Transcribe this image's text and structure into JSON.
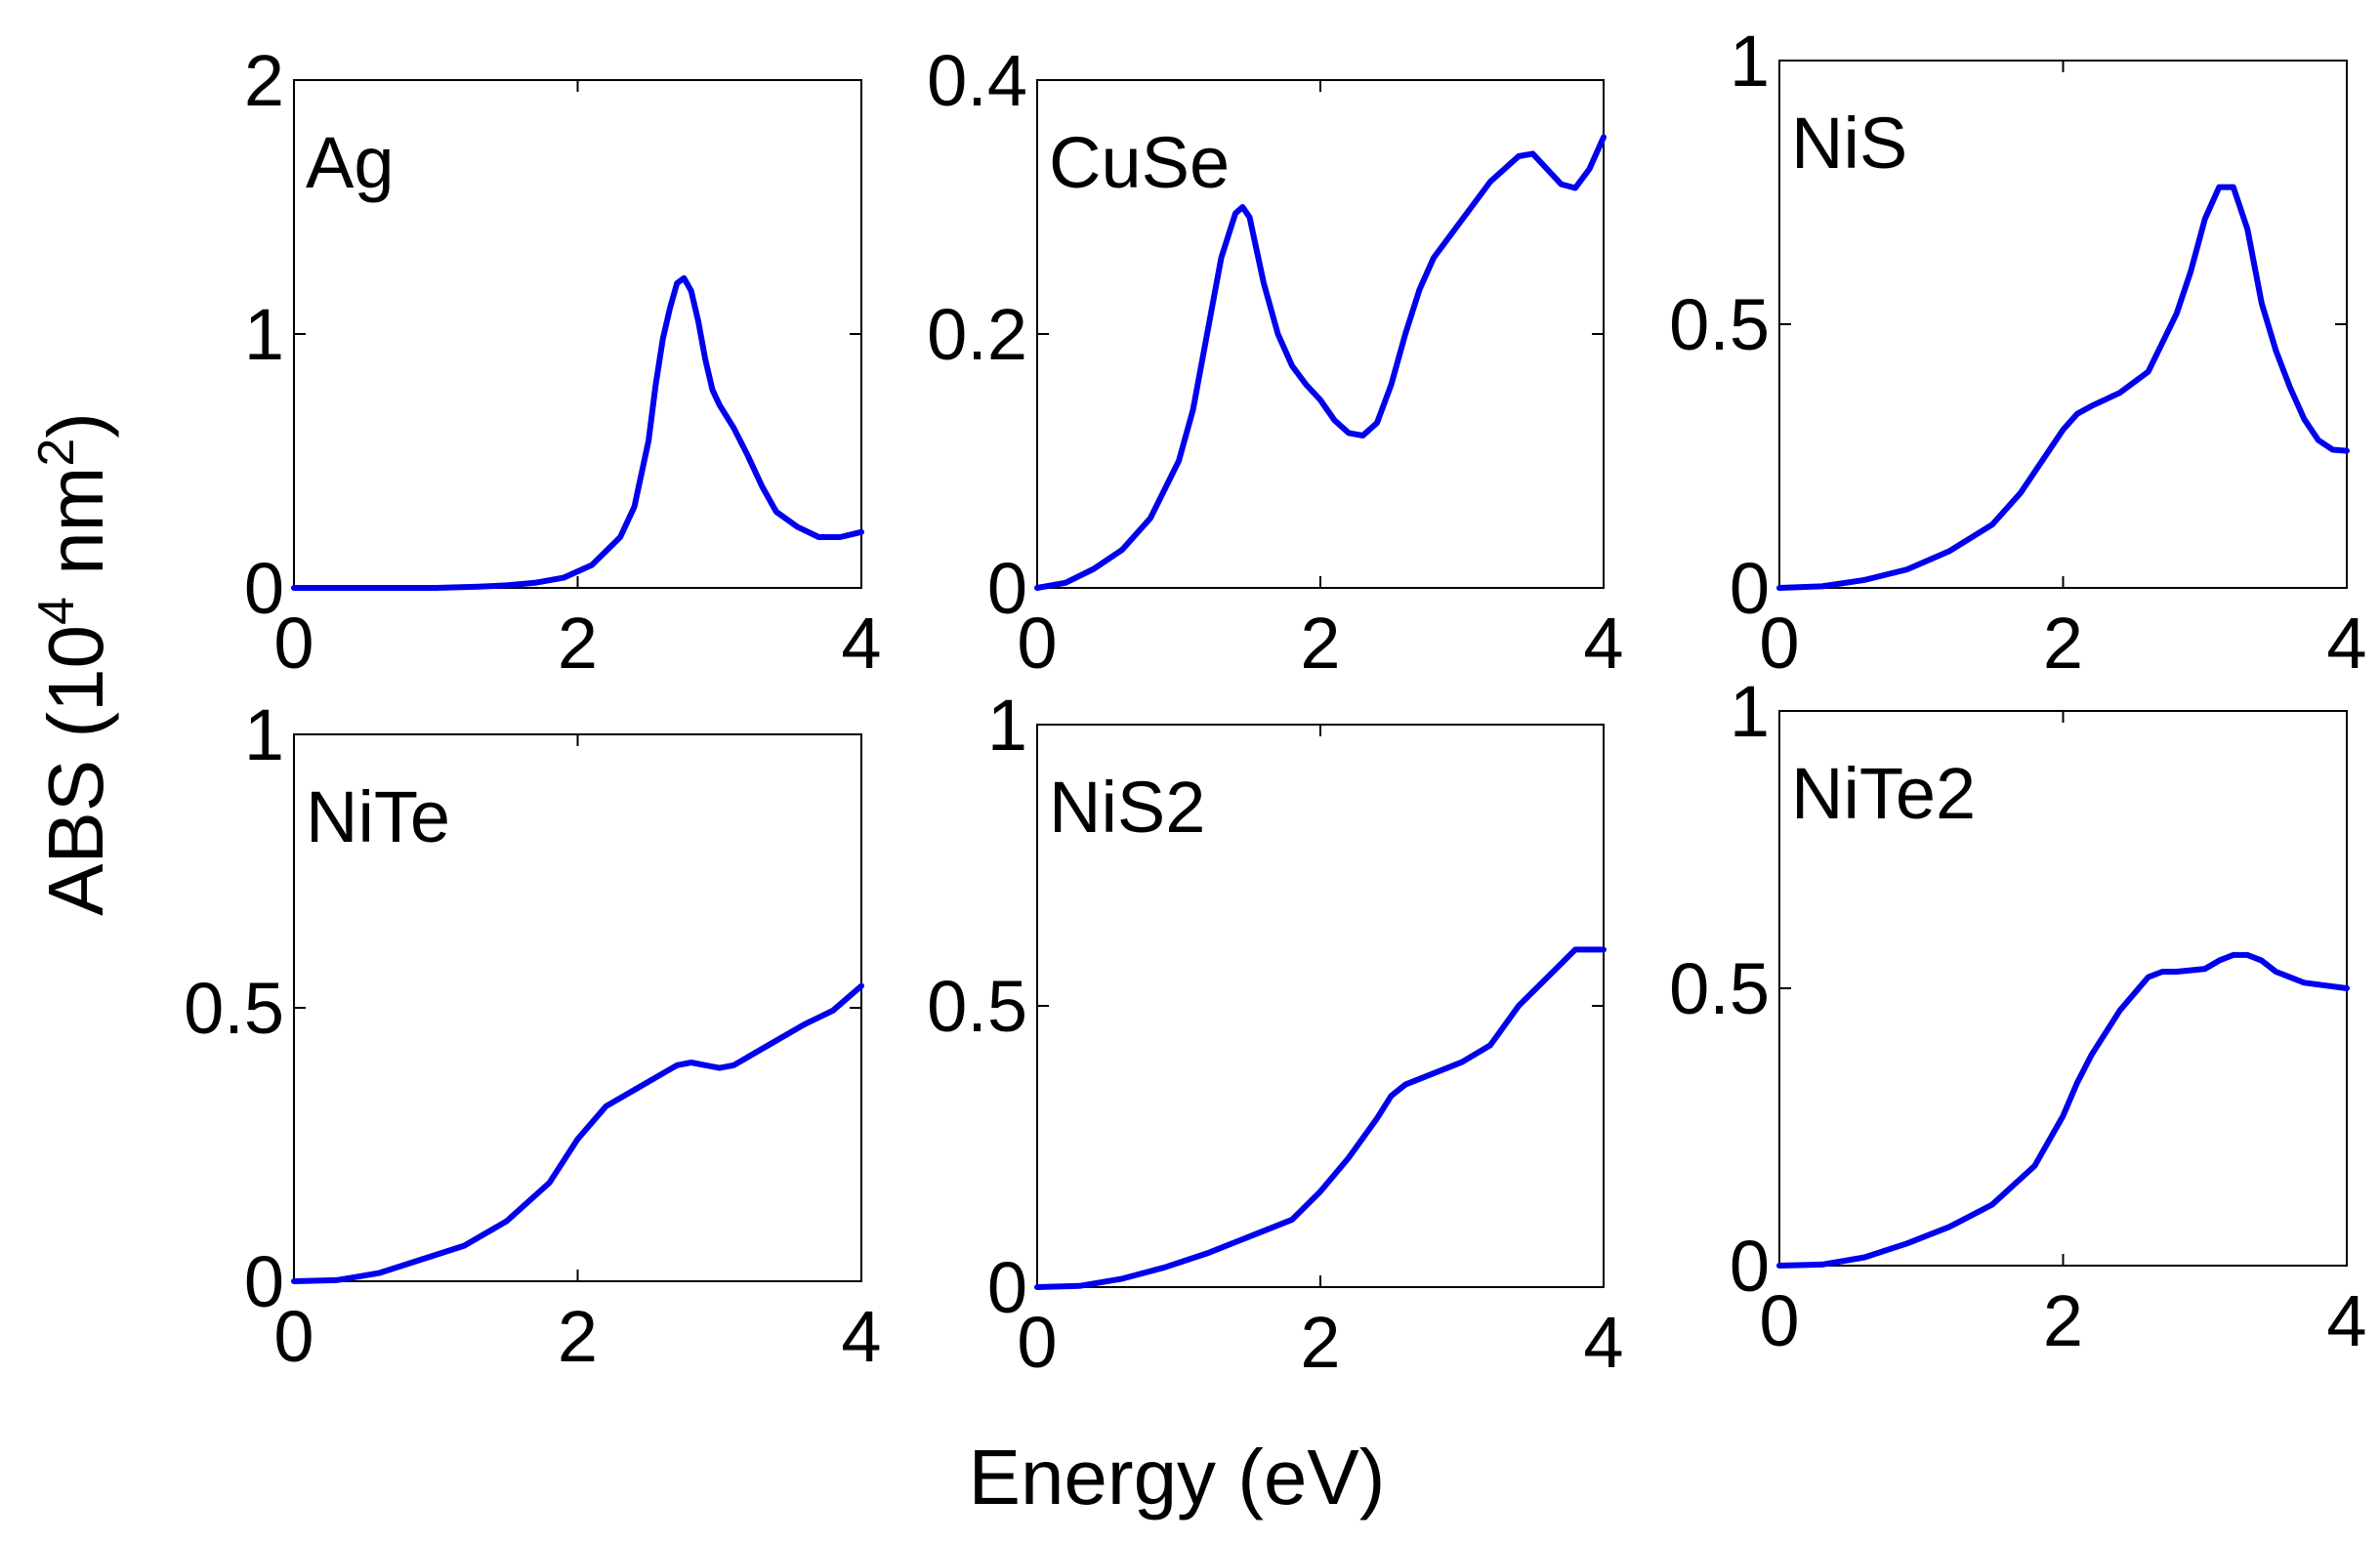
{
  "figure": {
    "ylabel_main": "ABS (10",
    "ylabel_exp1": "4",
    "ylabel_mid": " nm",
    "ylabel_exp2": "2",
    "ylabel_close": ")",
    "xlabel": "Energy (eV)",
    "line_color": "#0000ee"
  },
  "chart_data": [
    {
      "type": "line",
      "title": "Ag",
      "xlim": [
        0,
        4
      ],
      "ylim": [
        0,
        2
      ],
      "xticks": [
        0,
        2,
        4
      ],
      "xtick_labels": [
        "0",
        "2",
        "4"
      ],
      "yticks": [
        0,
        1,
        2
      ],
      "ytick_labels": [
        "0",
        "1",
        "2"
      ],
      "x": [
        0,
        0.5,
        1.0,
        1.3,
        1.5,
        1.7,
        1.9,
        2.1,
        2.3,
        2.4,
        2.5,
        2.55,
        2.6,
        2.65,
        2.7,
        2.75,
        2.8,
        2.85,
        2.9,
        2.95,
        3.0,
        3.1,
        3.2,
        3.3,
        3.4,
        3.55,
        3.7,
        3.85,
        4.0
      ],
      "y": [
        0,
        0,
        0,
        0.005,
        0.01,
        0.02,
        0.04,
        0.09,
        0.2,
        0.32,
        0.58,
        0.8,
        0.98,
        1.1,
        1.2,
        1.22,
        1.17,
        1.05,
        0.9,
        0.78,
        0.72,
        0.63,
        0.52,
        0.4,
        0.3,
        0.24,
        0.2,
        0.2,
        0.22
      ]
    },
    {
      "type": "line",
      "title": "CuSe",
      "xlim": [
        0,
        4
      ],
      "ylim": [
        0,
        0.4
      ],
      "xticks": [
        0,
        2,
        4
      ],
      "xtick_labels": [
        "0",
        "2",
        "4"
      ],
      "yticks": [
        0,
        0.2,
        0.4
      ],
      "ytick_labels": [
        "0",
        "0.2",
        "0.4"
      ],
      "x": [
        0,
        0.2,
        0.4,
        0.6,
        0.8,
        1.0,
        1.1,
        1.2,
        1.3,
        1.4,
        1.45,
        1.5,
        1.6,
        1.7,
        1.8,
        1.9,
        2.0,
        2.1,
        2.2,
        2.3,
        2.4,
        2.5,
        2.6,
        2.7,
        2.8,
        3.0,
        3.2,
        3.4,
        3.5,
        3.6,
        3.7,
        3.8,
        3.9,
        4.0
      ],
      "y": [
        0,
        0.004,
        0.015,
        0.03,
        0.055,
        0.1,
        0.14,
        0.2,
        0.26,
        0.295,
        0.3,
        0.292,
        0.24,
        0.2,
        0.175,
        0.16,
        0.148,
        0.132,
        0.122,
        0.12,
        0.13,
        0.16,
        0.2,
        0.235,
        0.26,
        0.29,
        0.32,
        0.34,
        0.342,
        0.33,
        0.318,
        0.315,
        0.33,
        0.355
      ]
    },
    {
      "type": "line",
      "title": "NiS",
      "xlim": [
        0,
        4
      ],
      "ylim": [
        0,
        1
      ],
      "xticks": [
        0,
        2,
        4
      ],
      "xtick_labels": [
        "0",
        "2",
        "4"
      ],
      "yticks": [
        0,
        0.5,
        1
      ],
      "ytick_labels": [
        "0",
        "0.5",
        "1"
      ],
      "x": [
        0,
        0.3,
        0.6,
        0.9,
        1.2,
        1.5,
        1.7,
        1.9,
        2.0,
        2.1,
        2.2,
        2.4,
        2.6,
        2.8,
        2.9,
        3.0,
        3.1,
        3.2,
        3.3,
        3.4,
        3.5,
        3.6,
        3.7,
        3.8,
        3.9,
        4.0
      ],
      "y": [
        0,
        0.003,
        0.015,
        0.035,
        0.07,
        0.12,
        0.18,
        0.26,
        0.3,
        0.33,
        0.345,
        0.37,
        0.41,
        0.52,
        0.6,
        0.7,
        0.76,
        0.76,
        0.68,
        0.54,
        0.45,
        0.38,
        0.32,
        0.28,
        0.262,
        0.26
      ]
    },
    {
      "type": "line",
      "title": "NiTe",
      "xlim": [
        0,
        4
      ],
      "ylim": [
        0,
        1
      ],
      "xticks": [
        0,
        2,
        4
      ],
      "xtick_labels": [
        "0",
        "2",
        "4"
      ],
      "yticks": [
        0,
        0.5,
        1
      ],
      "ytick_labels": [
        "0",
        "0.5",
        "1"
      ],
      "x": [
        0,
        0.3,
        0.6,
        0.9,
        1.2,
        1.5,
        1.8,
        2.0,
        2.2,
        2.4,
        2.6,
        2.7,
        2.8,
        2.9,
        3.0,
        3.1,
        3.2,
        3.4,
        3.6,
        3.8,
        4.0
      ],
      "y": [
        0,
        0.002,
        0.015,
        0.04,
        0.065,
        0.11,
        0.18,
        0.26,
        0.32,
        0.35,
        0.38,
        0.395,
        0.4,
        0.395,
        0.39,
        0.395,
        0.41,
        0.44,
        0.47,
        0.495,
        0.54
      ]
    },
    {
      "type": "line",
      "title": "NiS2",
      "xlim": [
        0,
        4
      ],
      "ylim": [
        0,
        1
      ],
      "xticks": [
        0,
        2,
        4
      ],
      "xtick_labels": [
        "0",
        "2",
        "4"
      ],
      "yticks": [
        0,
        0.5,
        1
      ],
      "ytick_labels": [
        "0",
        "0.5",
        "1"
      ],
      "x": [
        0,
        0.3,
        0.6,
        0.9,
        1.2,
        1.5,
        1.8,
        2.0,
        2.2,
        2.4,
        2.5,
        2.6,
        2.8,
        3.0,
        3.2,
        3.4,
        3.6,
        3.8,
        3.9,
        4.0
      ],
      "y": [
        0,
        0.002,
        0.015,
        0.035,
        0.06,
        0.09,
        0.12,
        0.17,
        0.23,
        0.3,
        0.34,
        0.36,
        0.38,
        0.4,
        0.43,
        0.5,
        0.55,
        0.6,
        0.6,
        0.6
      ]
    },
    {
      "type": "line",
      "title": "NiTe2",
      "xlim": [
        0,
        4
      ],
      "ylim": [
        0,
        1
      ],
      "xticks": [
        0,
        2,
        4
      ],
      "xtick_labels": [
        "0",
        "2",
        "4"
      ],
      "yticks": [
        0,
        0.5,
        1
      ],
      "ytick_labels": [
        "0",
        "0.5",
        "1"
      ],
      "x": [
        0,
        0.3,
        0.6,
        0.9,
        1.2,
        1.5,
        1.8,
        2.0,
        2.1,
        2.2,
        2.4,
        2.6,
        2.7,
        2.8,
        3.0,
        3.1,
        3.2,
        3.3,
        3.4,
        3.5,
        3.7,
        4.0
      ],
      "y": [
        0,
        0.002,
        0.015,
        0.04,
        0.07,
        0.11,
        0.18,
        0.27,
        0.33,
        0.38,
        0.46,
        0.52,
        0.53,
        0.53,
        0.535,
        0.55,
        0.56,
        0.56,
        0.55,
        0.53,
        0.51,
        0.5
      ]
    }
  ]
}
